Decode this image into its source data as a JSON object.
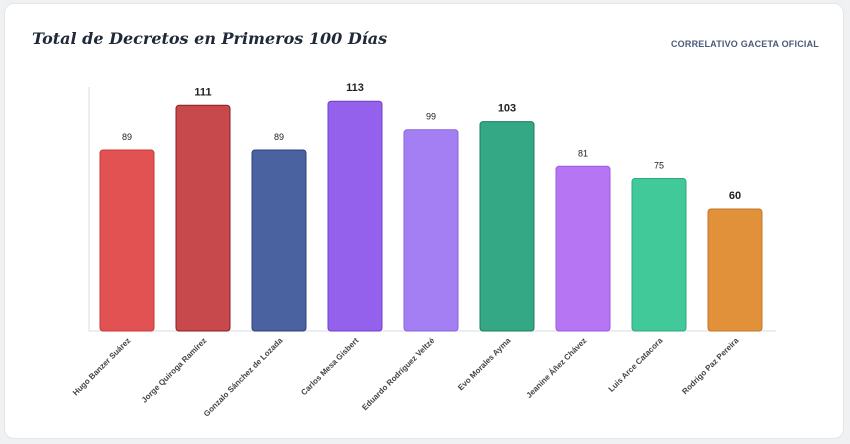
{
  "card": {
    "title": "Total de Decretos en Primeros 100 Días",
    "source_link": "CORRELATIVO GACETA OFICIAL"
  },
  "chart_data": {
    "type": "bar",
    "title": "Total de Decretos en Primeros 100 Días",
    "xlabel": "",
    "ylabel": "",
    "ylim": [
      0,
      120
    ],
    "grid": false,
    "legend": "none",
    "categories": [
      "Hugo Banzer Suárez",
      "Jorge Quiroga Ramírez",
      "Gonzalo Sánchez de Lozada",
      "Carlos Mesa Gisbert",
      "Eduardo Rodríguez Veltzé",
      "Evo Morales Ayma",
      "Jeanine Áñez Chávez",
      "Luis Arce Catacora",
      "Rodrigo Paz Pereira"
    ],
    "values": [
      89,
      111,
      89,
      113,
      99,
      103,
      81,
      75,
      60
    ],
    "bar_colors": [
      "#e35252",
      "#c8494b",
      "#4b62a0",
      "#9461ed",
      "#a47ef3",
      "#34a884",
      "#b676f4",
      "#42c99a",
      "#e0913a"
    ],
    "bar_borders": [
      "#c43a3a",
      "#8a1f24",
      "#2e3f78",
      "#6f3fcf",
      "#8a64dc",
      "#1f7d5f",
      "#9c5ae0",
      "#2ea882",
      "#c27626"
    ],
    "value_label_colors": [
      "#222222",
      "#e0393e",
      "#222222",
      "#e0393e",
      "#222222",
      "#e0393e",
      "#222222",
      "#222222",
      "#1fa574"
    ],
    "highlighted": [
      false,
      true,
      false,
      true,
      false,
      true,
      false,
      false,
      true
    ]
  }
}
